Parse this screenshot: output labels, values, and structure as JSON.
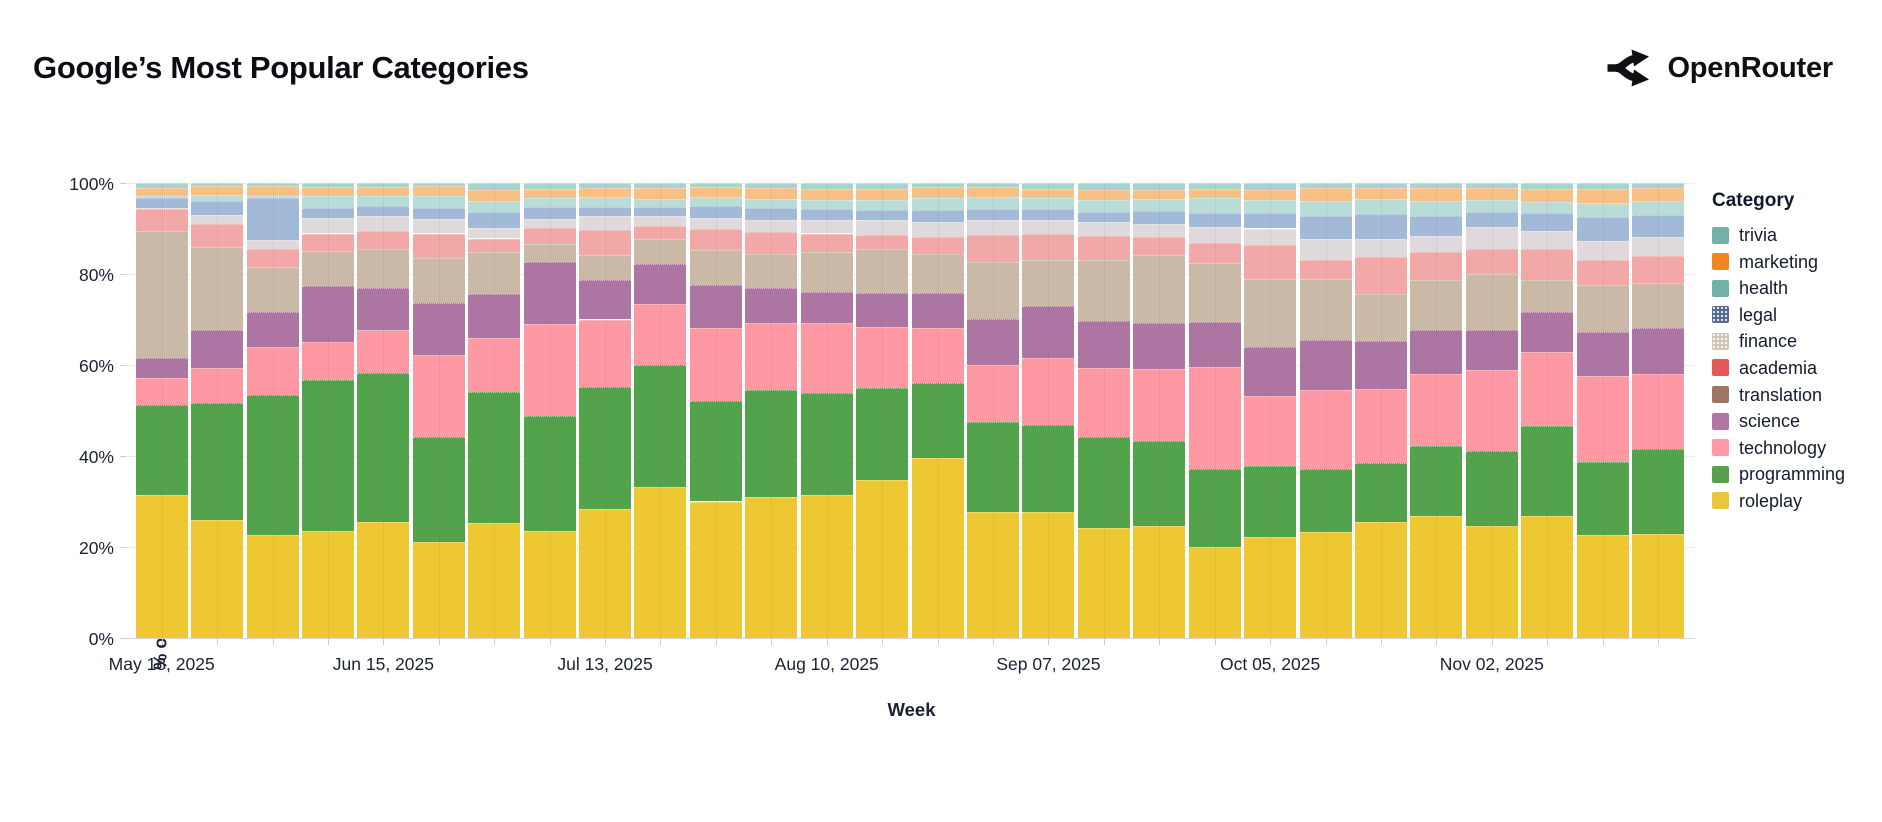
{
  "header": {
    "title": "Google’s Most Popular Categories",
    "brand": "OpenRouter"
  },
  "chart_data": {
    "type": "bar",
    "stacked": true,
    "title": "Google’s Most Popular Categories",
    "x_label": "Week",
    "y_label": "% of Total Tokens",
    "y_ticks": [
      "0%",
      "20%",
      "40%",
      "60%",
      "80%",
      "100%"
    ],
    "y_range": [
      0,
      100
    ],
    "weeks": 28,
    "x_tick_labels": [
      "May 18, 2025",
      "Jun 15, 2025",
      "Jul 13, 2025",
      "Aug 10, 2025",
      "Sep 07, 2025",
      "Oct 05, 2025",
      "Nov 02, 2025"
    ],
    "x_tick_positions": [
      0,
      4,
      8,
      12,
      16,
      20,
      24
    ],
    "legend_title": "Category",
    "legend_position": "right",
    "grid": true,
    "categories": [
      {
        "name": "trivia",
        "legend_color": "#72b1a8",
        "bar_color": "#a7d5ce",
        "legend_pattern": false,
        "band_texture": true,
        "values": [
          1.0,
          0.7,
          0.7,
          0.8,
          0.9,
          0.7,
          1.6,
          1.4,
          1.2,
          1.2,
          0.9,
          1.2,
          1.4,
          1.4,
          0.9,
          0.9,
          1.4,
          1.5,
          1.5,
          1.4,
          1.5,
          1.0,
          1.0,
          1.0,
          1.0,
          1.4,
          1.4,
          1.0
        ]
      },
      {
        "name": "marketing",
        "legend_color": "#f1861f",
        "bar_color": "#f8c084",
        "legend_pattern": false,
        "band_texture": true,
        "values": [
          1.8,
          1.9,
          2.1,
          2.0,
          2.0,
          2.1,
          2.4,
          2.0,
          1.8,
          2.4,
          2.2,
          2.4,
          2.3,
          2.4,
          2.5,
          2.1,
          2.0,
          2.2,
          2.1,
          2.0,
          2.2,
          2.9,
          2.6,
          2.9,
          2.7,
          2.7,
          2.9,
          2.9
        ]
      },
      {
        "name": "health",
        "legend_color": "#72b1a8",
        "bar_color": "#b9dcd6",
        "legend_pattern": false,
        "band_texture": true,
        "values": [
          0.4,
          1.4,
          0.4,
          2.8,
          2.2,
          2.8,
          2.3,
          1.8,
          2.2,
          1.7,
          1.9,
          2.0,
          2.1,
          2.1,
          2.5,
          2.7,
          2.4,
          2.6,
          2.5,
          3.1,
          3.0,
          3.4,
          3.2,
          3.4,
          2.6,
          2.6,
          3.1,
          3.1
        ]
      },
      {
        "name": "legal",
        "legend_color": "#56688c",
        "bar_color": "#a2b9d8",
        "legend_pattern": true,
        "band_texture": true,
        "values": [
          2.2,
          3.0,
          9.3,
          2.2,
          2.1,
          2.4,
          3.5,
          2.8,
          2.1,
          2.0,
          2.7,
          2.5,
          2.4,
          2.3,
          2.6,
          2.4,
          2.3,
          2.2,
          2.9,
          3.2,
          3.3,
          5.1,
          5.4,
          4.3,
          3.4,
          3.8,
          5.3,
          4.9
        ]
      },
      {
        "name": "finance",
        "legend_color": "#cfc5b8",
        "bar_color": "#e0d9db",
        "legend_pattern": true,
        "band_texture": true,
        "values": [
          0.4,
          2.1,
          2.0,
          3.3,
          3.4,
          3.1,
          2.4,
          1.9,
          3.0,
          2.2,
          2.5,
          2.6,
          2.9,
          3.2,
          3.4,
          3.4,
          3.1,
          3.1,
          2.9,
          3.4,
          3.6,
          4.5,
          4.1,
          3.5,
          4.7,
          4.1,
          4.2,
          4.1
        ]
      },
      {
        "name": "academia",
        "legend_color": "#e45855",
        "bar_color": "#f1a8a6",
        "legend_pattern": false,
        "band_texture": true,
        "values": [
          4.8,
          4.9,
          4.0,
          3.9,
          3.8,
          5.3,
          2.9,
          3.4,
          5.5,
          2.9,
          4.5,
          4.8,
          4.0,
          3.2,
          3.6,
          5.9,
          5.7,
          5.3,
          3.9,
          4.5,
          7.6,
          4.1,
          8.1,
          6.2,
          5.6,
          6.7,
          5.5,
          5.9
        ]
      },
      {
        "name": "translation",
        "legend_color": "#9d7663",
        "bar_color": "#cbb9a8",
        "legend_pattern": false,
        "band_texture": true,
        "values": [
          27.8,
          18.3,
          9.9,
          7.7,
          8.7,
          10.0,
          9.3,
          4.0,
          5.5,
          5.3,
          7.7,
          7.6,
          8.8,
          9.5,
          8.7,
          12.5,
          10.1,
          13.4,
          14.9,
          12.9,
          14.9,
          13.5,
          10.3,
          10.9,
          12.2,
          7.0,
          10.3,
          10.0
        ]
      },
      {
        "name": "science",
        "legend_color": "#b177a3",
        "bar_color": "#ad76a2",
        "legend_pattern": false,
        "band_texture": false,
        "values": [
          4.4,
          8.4,
          7.6,
          12.3,
          9.2,
          11.4,
          9.6,
          13.6,
          8.7,
          8.9,
          9.4,
          7.6,
          6.9,
          7.5,
          7.7,
          10.1,
          11.5,
          10.4,
          10.2,
          10.0,
          10.7,
          11.1,
          10.6,
          9.8,
          8.9,
          8.8,
          9.7,
          10.1
        ]
      },
      {
        "name": "technology",
        "legend_color": "#ff9aa6",
        "bar_color": "#fe99a3",
        "legend_pattern": false,
        "band_texture": false,
        "values": [
          6.0,
          7.7,
          10.5,
          8.2,
          9.5,
          18.0,
          12.0,
          20.3,
          14.9,
          13.4,
          16.2,
          14.9,
          15.4,
          13.5,
          12.1,
          12.6,
          14.6,
          15.2,
          15.7,
          22.4,
          15.4,
          17.3,
          16.2,
          15.8,
          17.7,
          16.3,
          18.9,
          16.5
        ]
      },
      {
        "name": "programming",
        "legend_color": "#55a14e",
        "bar_color": "#53a24c",
        "legend_pattern": false,
        "band_texture": false,
        "values": [
          19.8,
          25.7,
          30.8,
          33.3,
          32.6,
          23.0,
          28.8,
          25.2,
          26.8,
          26.9,
          22.0,
          23.5,
          22.4,
          20.2,
          16.5,
          19.6,
          19.3,
          20.0,
          18.8,
          17.2,
          15.7,
          13.7,
          12.9,
          15.4,
          16.6,
          19.8,
          16.1,
          18.6
        ]
      },
      {
        "name": "roleplay",
        "legend_color": "#e9c63e",
        "bar_color": "#edc832",
        "legend_pattern": false,
        "band_texture": false,
        "values": [
          31.4,
          25.9,
          22.7,
          23.5,
          25.6,
          21.2,
          25.2,
          23.6,
          28.3,
          33.1,
          30.0,
          30.9,
          31.4,
          34.7,
          39.5,
          27.8,
          27.6,
          24.1,
          24.6,
          19.9,
          22.1,
          23.4,
          25.6,
          26.8,
          24.6,
          26.8,
          22.6,
          22.9
        ]
      }
    ]
  }
}
